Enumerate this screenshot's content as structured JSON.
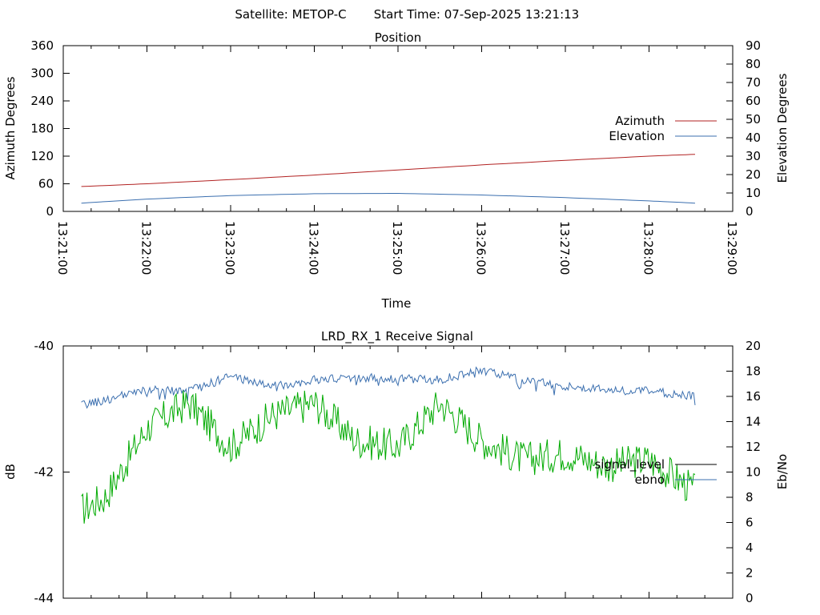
{
  "header": {
    "satellite_label": "Satellite: METOP-C",
    "start_time_label": "Start Time: 07-Sep-2025 13:21:13"
  },
  "chart_data": [
    {
      "type": "line",
      "title": "Position",
      "xlabel": "Time",
      "ylabel": "Azimuth Degrees",
      "y2label": "Elevation Degrees",
      "x_range_seconds": [
        0,
        480
      ],
      "x_tick_labels": [
        "13:21:00",
        "13:22:00",
        "13:23:00",
        "13:24:00",
        "13:25:00",
        "13:26:00",
        "13:27:00",
        "13:28:00",
        "13:29:00"
      ],
      "ylim": [
        0,
        360
      ],
      "yticks": [
        "0",
        "60",
        "120",
        "180",
        "240",
        "300",
        "360"
      ],
      "y2lim": [
        0,
        90
      ],
      "y2ticks": [
        "0",
        "10",
        "20",
        "30",
        "40",
        "50",
        "60",
        "70",
        "80",
        "90"
      ],
      "legend_position": "right",
      "x": [
        "13:21:13",
        "13:22:00",
        "13:23:00",
        "13:24:00",
        "13:25:00",
        "13:26:00",
        "13:27:00",
        "13:28:00",
        "13:28:33"
      ],
      "series": [
        {
          "name": "Azimuth",
          "axis": "y",
          "color": "#b22222",
          "values": [
            54,
            60,
            69,
            79,
            90,
            101,
            111,
            120,
            124
          ]
        },
        {
          "name": "Elevation",
          "axis": "y2",
          "color": "#3b6faf",
          "values": [
            4.5,
            6.7,
            8.6,
            9.6,
            9.8,
            8.9,
            7.5,
            5.7,
            4.5
          ]
        }
      ],
      "grid": false
    },
    {
      "type": "line",
      "title": "LRD_RX_1 Receive Signal",
      "xlabel": "",
      "ylabel": "dB",
      "y2label": "Eb/No",
      "ylim": [
        -44,
        -40
      ],
      "yticks": [
        "-44",
        "-42",
        "-40"
      ],
      "y2lim": [
        0,
        20
      ],
      "y2ticks": [
        "0",
        "2",
        "4",
        "6",
        "8",
        "10",
        "12",
        "14",
        "16",
        "18",
        "20"
      ],
      "x_range_seconds": [
        0,
        480
      ],
      "legend_position": "right",
      "series": [
        {
          "name": "signal_level",
          "axis": "y",
          "legend_color": "#000000",
          "color": "#00aa00",
          "x": [
            "13:21:13",
            "13:21:30",
            "13:22:00",
            "13:22:30",
            "13:23:00",
            "13:23:30",
            "13:24:00",
            "13:24:30",
            "13:25:00",
            "13:25:30",
            "13:26:00",
            "13:26:30",
            "13:27:00",
            "13:27:30",
            "13:28:00",
            "13:28:33"
          ],
          "values": [
            -42.6,
            -42.4,
            -41.3,
            -40.9,
            -41.6,
            -41.1,
            -40.9,
            -41.5,
            -41.6,
            -40.9,
            -41.5,
            -41.8,
            -41.7,
            -41.9,
            -41.8,
            -42.3
          ]
        },
        {
          "name": "ebno",
          "axis": "y2",
          "legend_color": "#3b6faf",
          "color": "#3b6faf",
          "x": [
            "13:21:13",
            "13:21:30",
            "13:22:00",
            "13:22:30",
            "13:23:00",
            "13:23:30",
            "13:24:00",
            "13:24:30",
            "13:25:00",
            "13:25:30",
            "13:26:00",
            "13:26:30",
            "13:27:00",
            "13:27:30",
            "13:28:00",
            "13:28:33"
          ],
          "values": [
            15.3,
            15.7,
            16.5,
            16.4,
            17.6,
            16.8,
            17.3,
            17.5,
            17.4,
            17.3,
            18.1,
            17.3,
            16.8,
            16.5,
            16.4,
            16.0
          ]
        }
      ],
      "grid": false
    }
  ]
}
